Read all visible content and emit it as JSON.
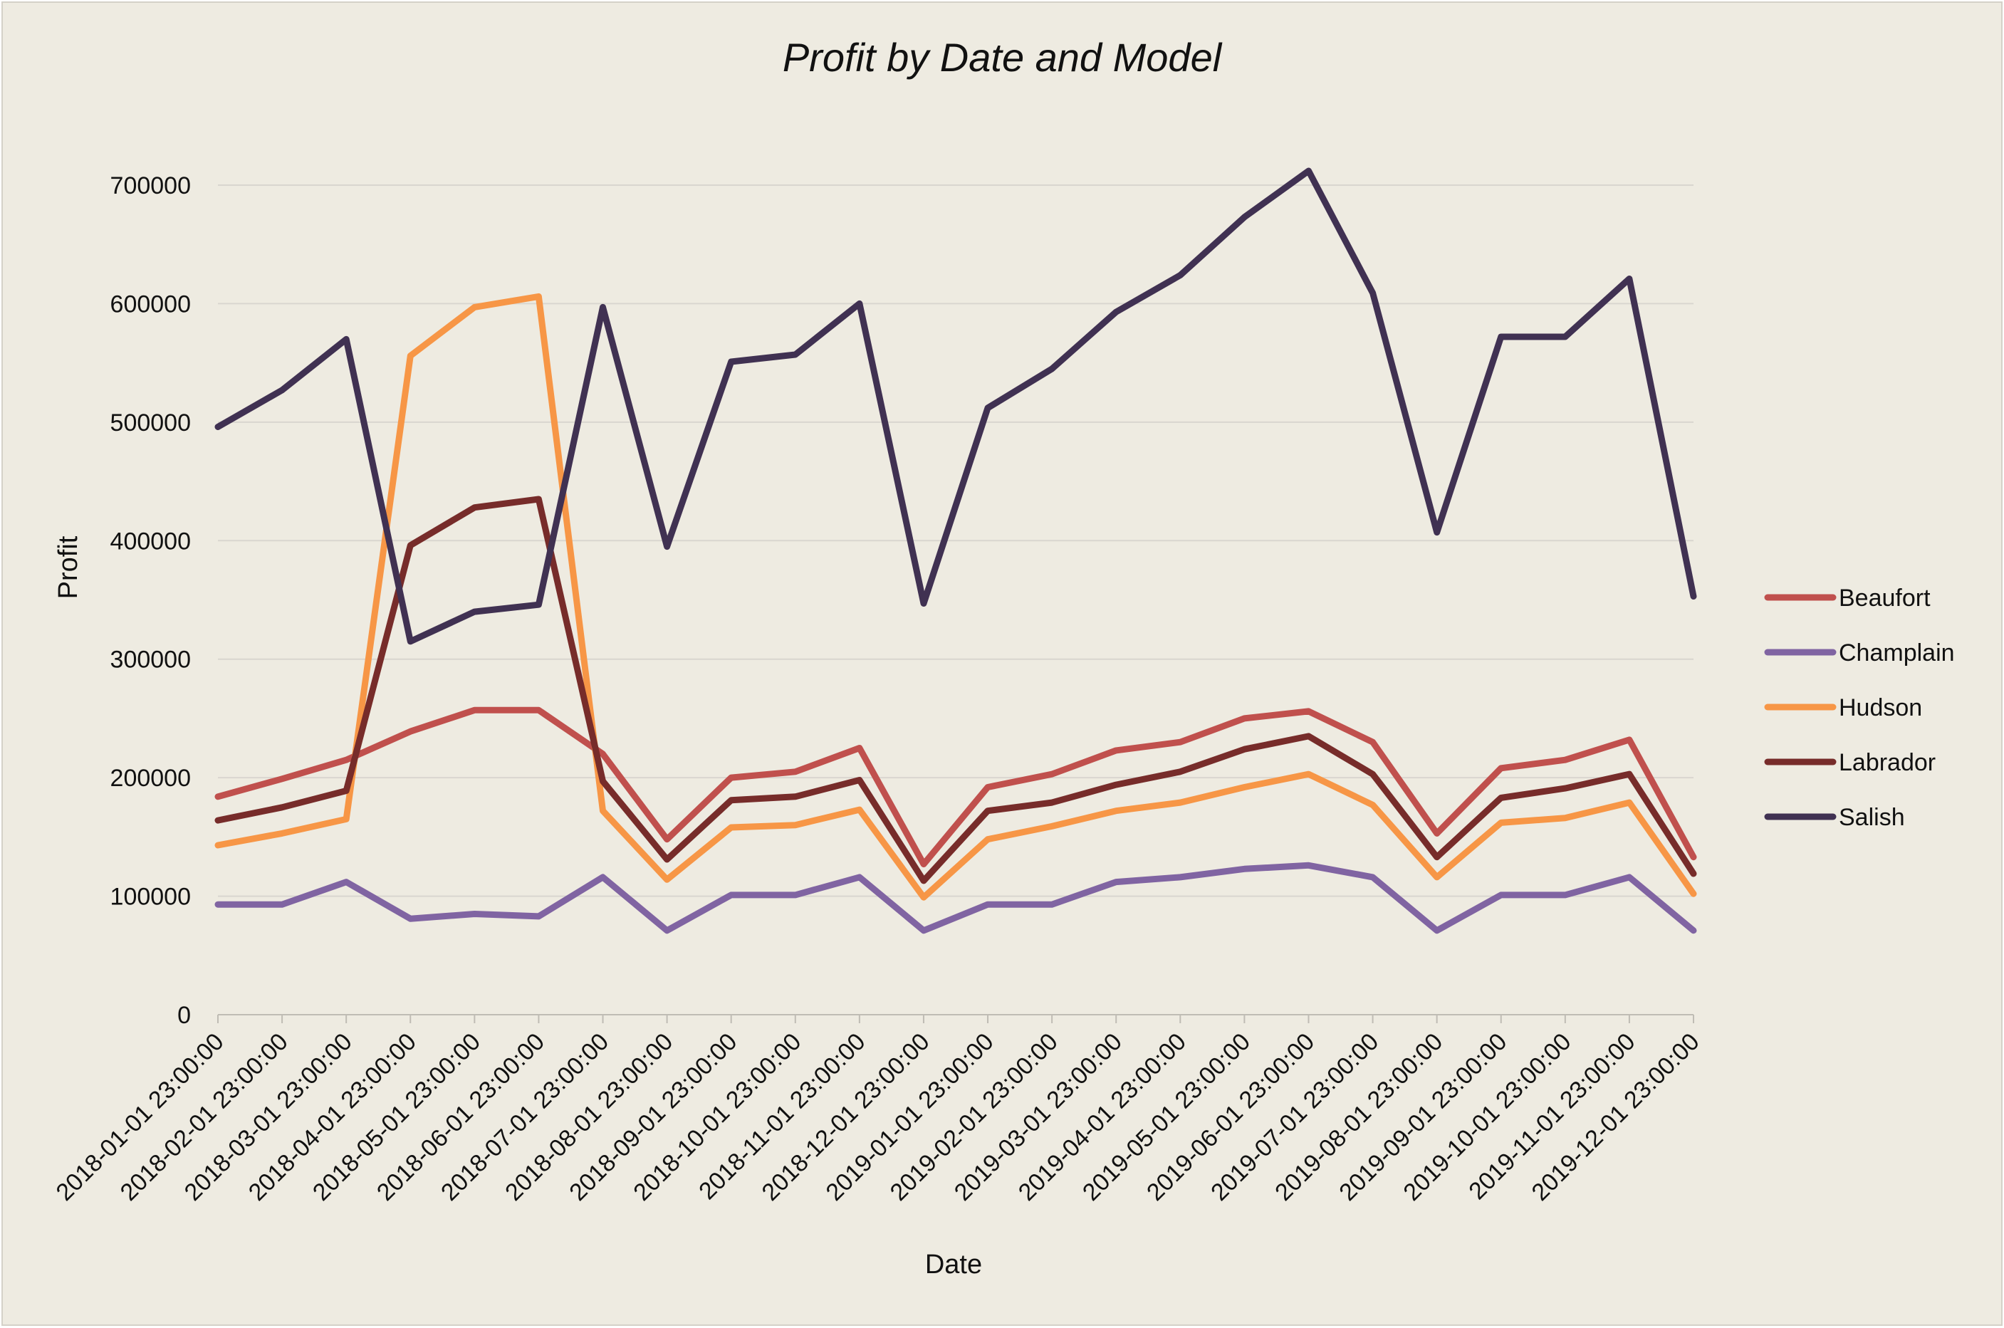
{
  "chart_data": {
    "type": "line",
    "title": "Profit by Date and Model",
    "xlabel": "Date",
    "ylabel": "Profit",
    "ylim": [
      0,
      700000
    ],
    "yticks": [
      0,
      100000,
      200000,
      300000,
      400000,
      500000,
      600000,
      700000
    ],
    "grid": true,
    "legend_position": "right",
    "categories": [
      "2018-01-01 23:00:00",
      "2018-02-01 23:00:00",
      "2018-03-01 23:00:00",
      "2018-04-01 23:00:00",
      "2018-05-01 23:00:00",
      "2018-06-01 23:00:00",
      "2018-07-01 23:00:00",
      "2018-08-01 23:00:00",
      "2018-09-01 23:00:00",
      "2018-10-01 23:00:00",
      "2018-11-01 23:00:00",
      "2018-12-01 23:00:00",
      "2019-01-01 23:00:00",
      "2019-02-01 23:00:00",
      "2019-03-01 23:00:00",
      "2019-04-01 23:00:00",
      "2019-05-01 23:00:00",
      "2019-06-01 23:00:00",
      "2019-07-01 23:00:00",
      "2019-08-01 23:00:00",
      "2019-09-01 23:00:00",
      "2019-10-01 23:00:00",
      "2019-11-01 23:00:00",
      "2019-12-01 23:00:00"
    ],
    "series": [
      {
        "name": "Beaufort",
        "color": "#c0504d",
        "values": [
          184000,
          199000,
          215000,
          239000,
          257000,
          257000,
          220000,
          148000,
          200000,
          205000,
          225000,
          127000,
          192000,
          203000,
          223000,
          230000,
          250000,
          256000,
          230000,
          153000,
          208000,
          215000,
          232000,
          133000
        ]
      },
      {
        "name": "Champlain",
        "color": "#8064a2",
        "values": [
          93000,
          93000,
          112000,
          81000,
          85000,
          83000,
          116000,
          71000,
          101000,
          101000,
          116000,
          71000,
          93000,
          93000,
          112000,
          116000,
          123000,
          126000,
          116000,
          71000,
          101000,
          101000,
          116000,
          71000
        ]
      },
      {
        "name": "Hudson",
        "color": "#f79646",
        "values": [
          143000,
          153000,
          165000,
          556000,
          597000,
          606000,
          172000,
          114000,
          158000,
          160000,
          173000,
          99000,
          148000,
          159000,
          172000,
          179000,
          192000,
          203000,
          177000,
          116000,
          162000,
          166000,
          179000,
          102000
        ]
      },
      {
        "name": "Labrador",
        "color": "#772c2a",
        "values": [
          164000,
          175000,
          189000,
          396000,
          428000,
          435000,
          197000,
          131000,
          181000,
          184000,
          198000,
          113000,
          172000,
          179000,
          194000,
          205000,
          224000,
          235000,
          203000,
          133000,
          183000,
          191000,
          203000,
          119000
        ]
      },
      {
        "name": "Salish",
        "color": "#403152",
        "values": [
          496000,
          527000,
          570000,
          315000,
          340000,
          346000,
          597000,
          395000,
          551000,
          557000,
          600000,
          347000,
          512000,
          545000,
          593000,
          624000,
          673000,
          712000,
          609000,
          407000,
          572000,
          572000,
          621000,
          353000
        ]
      }
    ]
  }
}
